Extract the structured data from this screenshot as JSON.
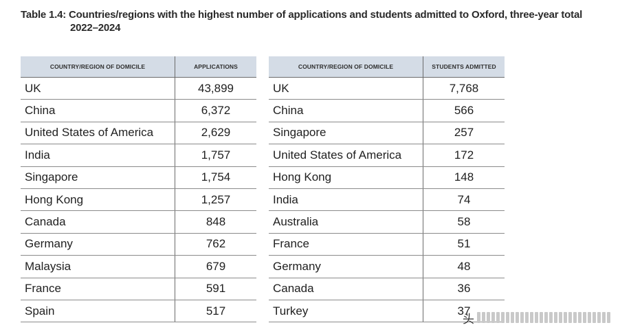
{
  "title": {
    "line1": "Table 1.4: Countries/regions with the highest number of applications and students admitted to Oxford, three-year total",
    "line2": "2022–2024"
  },
  "applications_table": {
    "headers": [
      "COUNTRY/REGION OF DOMICILE",
      "APPLICATIONS"
    ],
    "rows": [
      {
        "name": "UK",
        "value": "43,899"
      },
      {
        "name": "China",
        "value": "6,372"
      },
      {
        "name": "United States of America",
        "value": "2,629"
      },
      {
        "name": "India",
        "value": "1,757"
      },
      {
        "name": "Singapore",
        "value": "1,754"
      },
      {
        "name": "Hong Kong",
        "value": "1,257"
      },
      {
        "name": "Canada",
        "value": "848"
      },
      {
        "name": "Germany",
        "value": "762"
      },
      {
        "name": "Malaysia",
        "value": "679"
      },
      {
        "name": "France",
        "value": "591"
      },
      {
        "name": "Spain",
        "value": "517"
      }
    ]
  },
  "admitted_table": {
    "headers": [
      "COUNTRY/REGION OF DOMICILE",
      "STUDENTS ADMITTED"
    ],
    "rows": [
      {
        "name": "UK",
        "value": "7,768"
      },
      {
        "name": "China",
        "value": "566"
      },
      {
        "name": "Singapore",
        "value": "257"
      },
      {
        "name": "United States of America",
        "value": "172"
      },
      {
        "name": "Hong Kong",
        "value": "148"
      },
      {
        "name": "India",
        "value": "74"
      },
      {
        "name": "Australia",
        "value": "58"
      },
      {
        "name": "France",
        "value": "51"
      },
      {
        "name": "Germany",
        "value": "48"
      },
      {
        "name": "Canada",
        "value": "36"
      },
      {
        "name": "Turkey",
        "value": "37"
      }
    ]
  },
  "watermark": {
    "text": "头"
  }
}
